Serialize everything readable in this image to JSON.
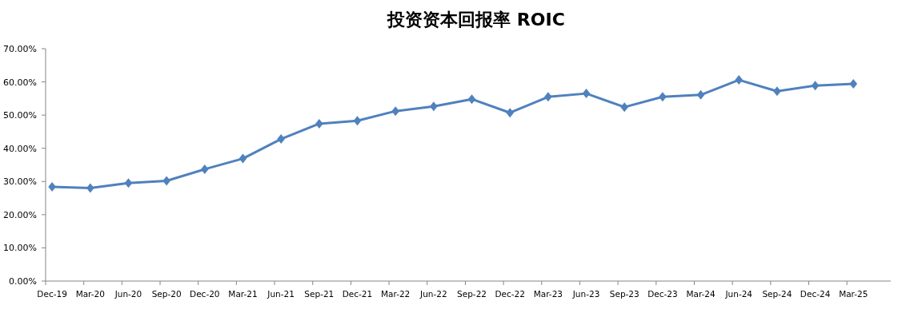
{
  "chart_data": {
    "type": "line",
    "title": "投资资本回报率 ROIC",
    "categories": [
      "Dec-19",
      "Mar-20",
      "Jun-20",
      "Sep-20",
      "Dec-20",
      "Mar-21",
      "Jun-21",
      "Sep-21",
      "Dec-21",
      "Mar-22",
      "Jun-22",
      "Sep-22",
      "Dec-22",
      "Mar-23",
      "Jun-23",
      "Sep-23",
      "Dec-23",
      "Mar-24",
      "Jun-24",
      "Sep-24",
      "Dec-24",
      "Mar-25"
    ],
    "series": [
      {
        "color": "#4f81bd",
        "values": [
          28.4,
          28.0,
          29.5,
          30.2,
          33.7,
          36.9,
          42.8,
          47.4,
          48.3,
          51.2,
          52.6,
          54.8,
          50.7,
          55.5,
          56.5,
          52.4,
          55.5,
          56.1,
          60.6,
          57.2,
          58.9,
          59.4
        ]
      }
    ],
    "ylim": [
      0,
      70
    ],
    "yticks": [
      {
        "value": 0,
        "label": "0.00%"
      },
      {
        "value": 10,
        "label": "10.00%"
      },
      {
        "value": 20,
        "label": "20.00%"
      },
      {
        "value": 30,
        "label": "30.00%"
      },
      {
        "value": 40,
        "label": "40.00%"
      },
      {
        "value": 50,
        "label": "50.00%"
      },
      {
        "value": 60,
        "label": "60.00%"
      },
      {
        "value": 70,
        "label": "70.00%"
      }
    ],
    "grid": false,
    "marker": "diamond",
    "line_style": "solid"
  }
}
